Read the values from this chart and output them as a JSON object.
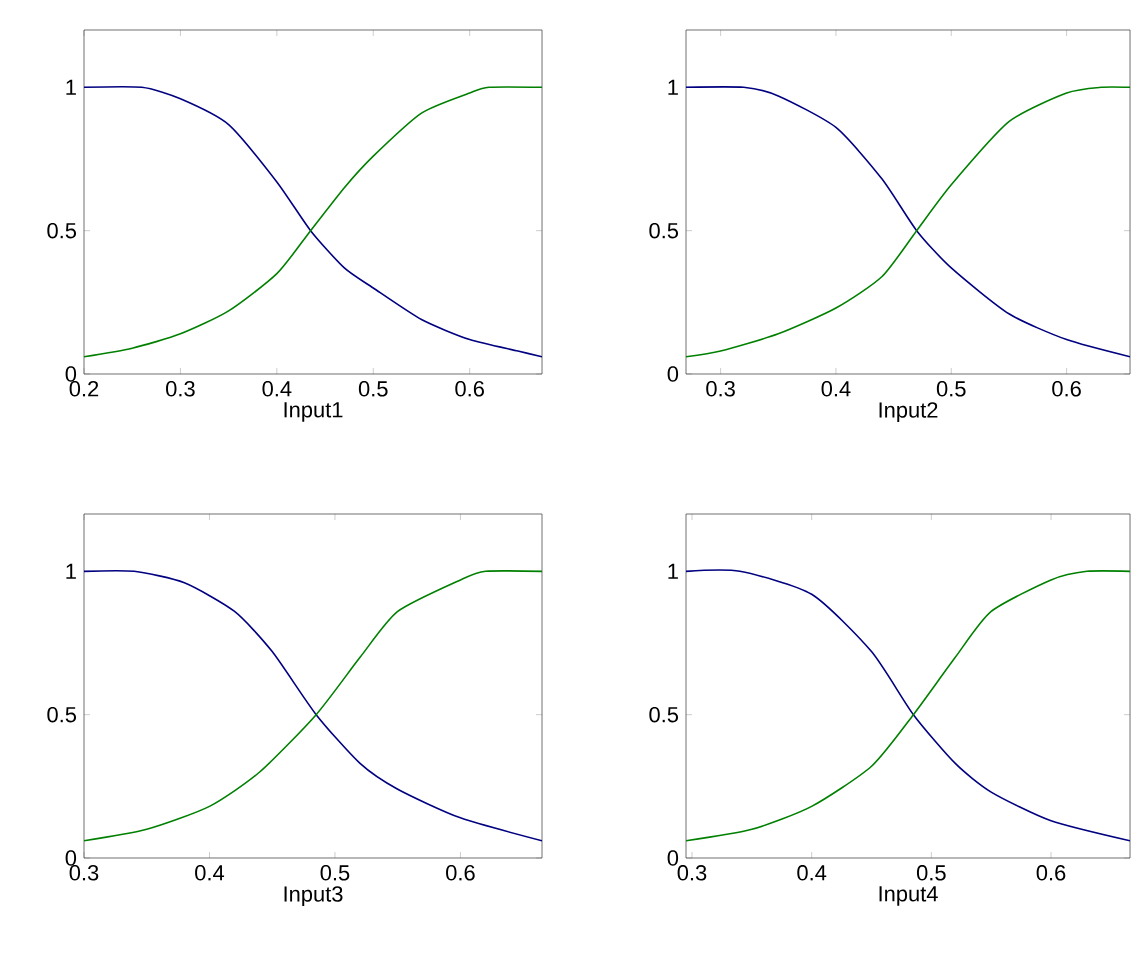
{
  "chart_data": [
    {
      "type": "line",
      "xlabel": "Input1",
      "xlim": [
        0.2,
        0.675
      ],
      "ylim": [
        0,
        1.2
      ],
      "xticks": [
        0.2,
        0.3,
        0.4,
        0.5,
        0.6
      ],
      "yticks": [
        0,
        0.5,
        1
      ],
      "grid": false,
      "marker": "none",
      "line_style": "solid",
      "series": [
        {
          "color": "#000080",
          "x": [
            0.2,
            0.26,
            0.3,
            0.35,
            0.4,
            0.435,
            0.47,
            0.5,
            0.55,
            0.6,
            0.65,
            0.675
          ],
          "values": [
            1,
            1,
            0.96,
            0.87,
            0.67,
            0.5,
            0.37,
            0.3,
            0.19,
            0.12,
            0.08,
            0.06
          ]
        },
        {
          "color": "#008000",
          "x": [
            0.2,
            0.25,
            0.3,
            0.35,
            0.4,
            0.435,
            0.47,
            0.5,
            0.55,
            0.6,
            0.62,
            0.675
          ],
          "values": [
            0.06,
            0.09,
            0.14,
            0.22,
            0.35,
            0.5,
            0.65,
            0.76,
            0.91,
            0.98,
            1,
            1
          ]
        }
      ]
    },
    {
      "type": "line",
      "xlabel": "Input2",
      "xlim": [
        0.27,
        0.655
      ],
      "ylim": [
        0,
        1.2
      ],
      "xticks": [
        0.3,
        0.4,
        0.5,
        0.6
      ],
      "yticks": [
        0,
        0.5,
        1
      ],
      "grid": false,
      "marker": "none",
      "line_style": "solid",
      "series": [
        {
          "color": "#000080",
          "x": [
            0.27,
            0.32,
            0.35,
            0.4,
            0.44,
            0.47,
            0.5,
            0.55,
            0.6,
            0.655
          ],
          "values": [
            1,
            1,
            0.97,
            0.86,
            0.68,
            0.5,
            0.37,
            0.21,
            0.12,
            0.06
          ]
        },
        {
          "color": "#008000",
          "x": [
            0.27,
            0.3,
            0.35,
            0.4,
            0.44,
            0.47,
            0.5,
            0.55,
            0.6,
            0.63,
            0.655
          ],
          "values": [
            0.06,
            0.08,
            0.14,
            0.23,
            0.34,
            0.5,
            0.66,
            0.88,
            0.98,
            1,
            1
          ]
        }
      ]
    },
    {
      "type": "line",
      "xlabel": "Input3",
      "xlim": [
        0.3,
        0.665
      ],
      "ylim": [
        0,
        1.2
      ],
      "xticks": [
        0.3,
        0.4,
        0.5,
        0.6
      ],
      "yticks": [
        0,
        0.5,
        1
      ],
      "grid": false,
      "marker": "none",
      "line_style": "solid",
      "series": [
        {
          "color": "#000080",
          "x": [
            0.3,
            0.34,
            0.38,
            0.42,
            0.45,
            0.485,
            0.52,
            0.55,
            0.6,
            0.665
          ],
          "values": [
            1,
            1,
            0.96,
            0.86,
            0.72,
            0.5,
            0.33,
            0.24,
            0.14,
            0.06
          ]
        },
        {
          "color": "#008000",
          "x": [
            0.3,
            0.35,
            0.4,
            0.44,
            0.485,
            0.52,
            0.55,
            0.6,
            0.62,
            0.665
          ],
          "values": [
            0.06,
            0.1,
            0.18,
            0.3,
            0.5,
            0.7,
            0.86,
            0.97,
            1,
            1
          ]
        }
      ]
    },
    {
      "type": "line",
      "xlabel": "Input4",
      "xlim": [
        0.295,
        0.666
      ],
      "ylim": [
        0,
        1.2
      ],
      "xticks": [
        0.3,
        0.4,
        0.5,
        0.6
      ],
      "yticks": [
        0,
        0.5,
        1
      ],
      "grid": false,
      "marker": "none",
      "line_style": "solid",
      "series": [
        {
          "color": "#000080",
          "x": [
            0.295,
            0.34,
            0.4,
            0.45,
            0.485,
            0.52,
            0.55,
            0.6,
            0.666
          ],
          "values": [
            1,
            1,
            0.92,
            0.72,
            0.5,
            0.33,
            0.23,
            0.13,
            0.06
          ]
        },
        {
          "color": "#008000",
          "x": [
            0.295,
            0.35,
            0.4,
            0.45,
            0.485,
            0.52,
            0.55,
            0.6,
            0.63,
            0.666
          ],
          "values": [
            0.06,
            0.1,
            0.18,
            0.32,
            0.5,
            0.7,
            0.86,
            0.97,
            1,
            1
          ]
        }
      ]
    }
  ]
}
